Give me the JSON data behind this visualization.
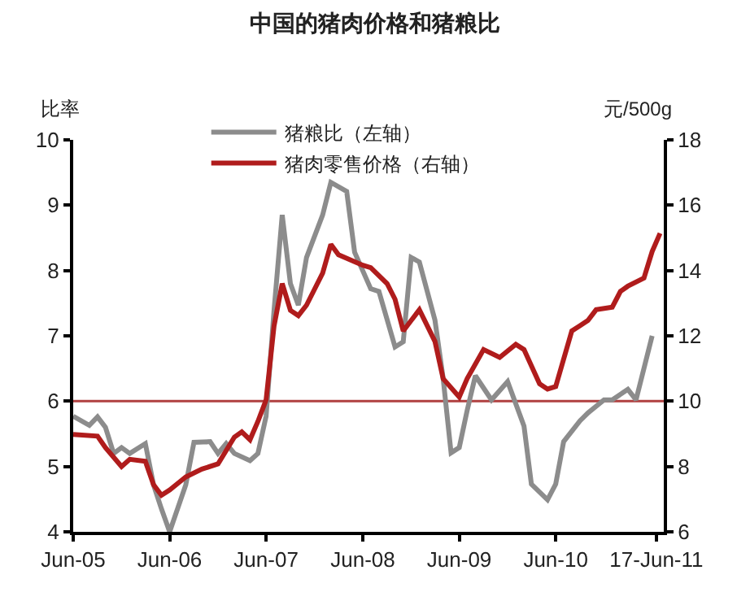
{
  "chart_data": {
    "type": "line",
    "title": "中国的猪肉价格和猪粮比",
    "ylabel": "比率",
    "y2label": "元/500g",
    "xlim": [
      "2005-06-01",
      "2011-07-15"
    ],
    "xticks": [
      {
        "value": "2005-06-01",
        "label": "Jun-05"
      },
      {
        "value": "2006-06-01",
        "label": "Jun-06"
      },
      {
        "value": "2007-06-01",
        "label": "Jun-07"
      },
      {
        "value": "2008-06-01",
        "label": "Jun-08"
      },
      {
        "value": "2009-06-01",
        "label": "Jun-09"
      },
      {
        "value": "2010-06-01",
        "label": "Jun-10"
      },
      {
        "value": "2011-06-17",
        "label": "17-Jun-11"
      }
    ],
    "ylim": [
      4,
      10
    ],
    "yticks": [
      4,
      5,
      6,
      7,
      8,
      9,
      10
    ],
    "y2lim": [
      6,
      18
    ],
    "y2ticks": [
      6,
      8,
      10,
      12,
      14,
      16,
      18
    ],
    "series": [
      {
        "name": "猪粮比（左轴）",
        "color": "#8c8c8c",
        "x": [
          "2005-06",
          "2005-08",
          "2005-09",
          "2005-10",
          "2005-11",
          "2005-12",
          "2006-01",
          "2006-03",
          "2006-04",
          "2006-05",
          "2006-06",
          "2006-08",
          "2006-09",
          "2006-11",
          "2006-12",
          "2007-01",
          "2007-02",
          "2007-04",
          "2007-05",
          "2007-06",
          "2007-07",
          "2007-08",
          "2007-09",
          "2007-10",
          "2007-11",
          "2008-01",
          "2008-02",
          "2008-04",
          "2008-05",
          "2008-07",
          "2008-08",
          "2008-10",
          "2008-11",
          "2008-12",
          "2009-01",
          "2009-03",
          "2009-04",
          "2009-05",
          "2009-06",
          "2009-07",
          "2009-08",
          "2009-10",
          "2009-12",
          "2010-02",
          "2010-03",
          "2010-05",
          "2010-06",
          "2010-07",
          "2010-09",
          "2010-10",
          "2010-12",
          "2011-01",
          "2011-03",
          "2011-04",
          "2011-06"
        ],
        "values": [
          5.77,
          5.63,
          5.76,
          5.6,
          5.2,
          5.29,
          5.2,
          5.35,
          4.72,
          4.35,
          4.0,
          4.72,
          5.37,
          5.38,
          5.2,
          5.35,
          5.2,
          5.09,
          5.2,
          5.77,
          7.39,
          8.85,
          7.8,
          7.47,
          8.2,
          8.85,
          9.35,
          9.21,
          8.28,
          7.72,
          7.68,
          6.83,
          6.91,
          8.2,
          8.13,
          7.24,
          6.35,
          5.21,
          5.29,
          5.86,
          6.39,
          6.02,
          6.3,
          5.62,
          4.73,
          4.49,
          4.73,
          5.38,
          5.7,
          5.82,
          6.02,
          6.02,
          6.18,
          6.02,
          7.0
        ]
      },
      {
        "name": "猪肉零售价格（右轴）",
        "color": "#b01c1c",
        "axis": "y2",
        "x": [
          "2005-06",
          "2005-09",
          "2005-10",
          "2005-12",
          "2006-01",
          "2006-03",
          "2006-04",
          "2006-05",
          "2006-06",
          "2006-08",
          "2006-10",
          "2006-12",
          "2007-02",
          "2007-03",
          "2007-04",
          "2007-05",
          "2007-06",
          "2007-07",
          "2007-08",
          "2007-09",
          "2007-10",
          "2007-11",
          "2008-01",
          "2008-02",
          "2008-03",
          "2008-06",
          "2008-07",
          "2008-09",
          "2008-10",
          "2008-11",
          "2009-01",
          "2009-03",
          "2009-04",
          "2009-06",
          "2009-07",
          "2009-09",
          "2009-11",
          "2010-01",
          "2010-02",
          "2010-04",
          "2010-05",
          "2010-06",
          "2010-08",
          "2010-09",
          "2010-10",
          "2010-11",
          "2011-01",
          "2011-02",
          "2011-03",
          "2011-05",
          "2011-06",
          "2011-07"
        ],
        "values": [
          8.98,
          8.93,
          8.58,
          8.0,
          8.22,
          8.16,
          7.44,
          7.12,
          7.28,
          7.68,
          7.92,
          8.08,
          8.9,
          9.06,
          8.82,
          9.38,
          10.04,
          12.3,
          13.6,
          12.78,
          12.62,
          12.94,
          13.92,
          14.8,
          14.48,
          14.16,
          14.09,
          13.6,
          13.12,
          12.15,
          12.8,
          11.83,
          10.69,
          10.13,
          10.69,
          11.58,
          11.34,
          11.74,
          11.58,
          10.53,
          10.37,
          10.45,
          12.15,
          12.31,
          12.47,
          12.8,
          12.88,
          13.36,
          13.52,
          13.77,
          14.58,
          15.14
        ]
      }
    ],
    "ref_lines": [
      {
        "axis": "y",
        "value": 6,
        "color": "#b04040"
      }
    ],
    "grid": false,
    "legend": "top",
    "marker": "none",
    "line_style": "solid"
  }
}
